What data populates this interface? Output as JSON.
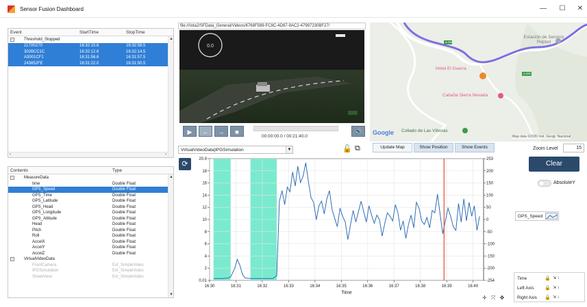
{
  "window": {
    "title": "Sensor Fusion Dashboard",
    "minimize": "—",
    "maximize": "☐",
    "close": "✕"
  },
  "events_table": {
    "columns": [
      "Event",
      "StartTime",
      "StopTime"
    ],
    "group": "Threshold_Stopped",
    "rows": [
      {
        "event": "1170S270",
        "start": "16:32:15.6",
        "stop": "16:32:58.5"
      },
      {
        "event": "302BCC1C",
        "start": "16:32:12.6",
        "stop": "16:32:14.5"
      },
      {
        "event": "A3001CF1",
        "start": "16:31:56.6",
        "stop": "16:31:57.5"
      },
      {
        "event": "243852FE",
        "start": "16:31:22.0",
        "stop": "16:31:50.5"
      }
    ]
  },
  "contents_table": {
    "columns": [
      "Contents",
      "Type"
    ],
    "groups": [
      {
        "name": "MeasureData",
        "items": [
          {
            "name": "time",
            "type": "Double Float"
          },
          {
            "name": "GPS_Speed",
            "type": "Double Float",
            "selected": true
          },
          {
            "name": "GPS_Time",
            "type": "Double Float"
          },
          {
            "name": "GPS_Latitude",
            "type": "Double Float"
          },
          {
            "name": "GPS_Head",
            "type": "Double Float"
          },
          {
            "name": "GPS_Longitude",
            "type": "Double Float"
          },
          {
            "name": "GPS_Altitude",
            "type": "Double Float"
          },
          {
            "name": "Head",
            "type": "Double Float"
          },
          {
            "name": "Pitch",
            "type": "Double Float"
          },
          {
            "name": "Roll",
            "type": "Double Float"
          },
          {
            "name": "AccelX",
            "type": "Double Float"
          },
          {
            "name": "AccelY",
            "type": "Double Float"
          },
          {
            "name": "AccelZ",
            "type": "Double Float"
          }
        ]
      },
      {
        "name": "VirtualVideoData",
        "items": [
          {
            "name": "FrontCamera",
            "type": "Ext_SimpleVideo"
          },
          {
            "name": "IPGSimulation",
            "type": "Ext_SimpleVideo"
          },
          {
            "name": "StreetView",
            "type": "Ext_SimpleVideo"
          }
        ]
      }
    ]
  },
  "video": {
    "path": "file:///iota2/SFData_General/Videos/6768F589-FC8C-4D67-9AC2-47997230BF27/",
    "time_display": "00:00:00.0 / 00:21:40.0",
    "progress": 0,
    "buttons": {
      "play": "▶",
      "back": "←",
      "forward": "→",
      "stop": "■",
      "volume": "🔊"
    },
    "dropdown_value": "VirtualVideoData|IPGSimulation"
  },
  "map": {
    "labels": {
      "station": "Estación de Servicio Repsol",
      "hotel": "Hotel El Guerra",
      "cabana": "Cabaña Sierra Nevada",
      "collado": "Collado de Las Víboras",
      "google": "Google",
      "attribution": "Map data ©2020 Inst. Geogr. Nacional",
      "road1": "A-395",
      "road2": "A-395"
    },
    "buttons": [
      "Update Map",
      "Show Position",
      "Show Events"
    ]
  },
  "controls": {
    "zoom_label": "Zoom Level",
    "zoom_value": "15",
    "clear_label": "Clear",
    "absolute_y_label": "AbsoluteY",
    "absolute_y_on": false,
    "series_label": "GPS_Speed"
  },
  "axis_panel": {
    "rows": [
      "Time",
      "Left Axis",
      "Right Axis"
    ]
  },
  "chart_data": {
    "type": "line",
    "xlabel": "Time",
    "ylabel": "",
    "x_ticks": [
      "16:30",
      "16:31",
      "16:32",
      "16:33",
      "16:34",
      "16:35",
      "16:36",
      "16:37",
      "16:38",
      "16:39",
      "16:40"
    ],
    "xlim": [
      0,
      10.4
    ],
    "left_ticks": [
      "0.01",
      "2",
      "4",
      "6",
      "8",
      "10",
      "12",
      "14",
      "16",
      "18",
      "20.9"
    ],
    "ylim": [
      0,
      20.9
    ],
    "right_ticks": [
      "-254",
      "-200",
      "-150",
      "-100",
      "-50",
      "0",
      "50",
      "100",
      "150",
      "200",
      "253"
    ],
    "right_ylim": [
      -254,
      253
    ],
    "highlight_ranges": [
      [
        0.15,
        0.8
      ],
      [
        1.55,
        2.55
      ]
    ],
    "marker_x": 8.9,
    "series": [
      {
        "values": [
          [
            0.15,
            0.3
          ],
          [
            0.45,
            0.3
          ],
          [
            0.7,
            0.4
          ],
          [
            0.8,
            0.6
          ],
          [
            0.95,
            2.0
          ],
          [
            1.05,
            3.6
          ],
          [
            1.15,
            2.6
          ],
          [
            1.25,
            1.0
          ],
          [
            1.35,
            0.4
          ],
          [
            1.6,
            0.3
          ],
          [
            2.0,
            0.3
          ],
          [
            2.4,
            0.3
          ],
          [
            2.55,
            0.8
          ],
          [
            2.65,
            13.6
          ],
          [
            2.75,
            15.4
          ],
          [
            2.85,
            13.0
          ],
          [
            2.95,
            16.0
          ],
          [
            3.05,
            15.2
          ],
          [
            3.15,
            18.6
          ],
          [
            3.25,
            16.2
          ],
          [
            3.35,
            19.6
          ],
          [
            3.45,
            16.8
          ],
          [
            3.55,
            17.9
          ],
          [
            3.65,
            20.2
          ],
          [
            3.75,
            17.0
          ],
          [
            3.85,
            14.2
          ],
          [
            3.95,
            13.4
          ],
          [
            4.05,
            10.4
          ],
          [
            4.15,
            12.8
          ],
          [
            4.25,
            13.6
          ],
          [
            4.35,
            11.4
          ],
          [
            4.45,
            14.0
          ],
          [
            4.55,
            15.4
          ],
          [
            4.65,
            12.2
          ],
          [
            4.75,
            10.6
          ],
          [
            4.85,
            9.2
          ],
          [
            4.95,
            12.4
          ],
          [
            5.05,
            11.0
          ],
          [
            5.15,
            10.0
          ],
          [
            5.25,
            7.0
          ],
          [
            5.35,
            9.6
          ],
          [
            5.45,
            12.0
          ],
          [
            5.55,
            10.0
          ],
          [
            5.65,
            11.8
          ],
          [
            5.75,
            13.6
          ],
          [
            5.85,
            11.8
          ],
          [
            5.95,
            10.0
          ],
          [
            6.05,
            12.8
          ],
          [
            6.15,
            11.2
          ],
          [
            6.25,
            9.8
          ],
          [
            6.35,
            11.2
          ],
          [
            6.45,
            10.4
          ],
          [
            6.55,
            7.6
          ],
          [
            6.65,
            9.8
          ],
          [
            6.75,
            11.6
          ],
          [
            6.85,
            11.0
          ],
          [
            6.95,
            10.2
          ],
          [
            7.05,
            13.0
          ],
          [
            7.15,
            11.6
          ],
          [
            7.25,
            8.6
          ],
          [
            7.35,
            10.2
          ],
          [
            7.45,
            7.2
          ],
          [
            7.55,
            9.6
          ],
          [
            7.65,
            11.2
          ],
          [
            7.75,
            9.0
          ],
          [
            7.85,
            13.4
          ],
          [
            7.95,
            12.4
          ],
          [
            8.05,
            10.2
          ],
          [
            8.15,
            9.6
          ],
          [
            8.25,
            10.8
          ],
          [
            8.35,
            9.0
          ],
          [
            8.45,
            12.0
          ],
          [
            8.55,
            11.6
          ],
          [
            8.65,
            14.8
          ],
          [
            8.75,
            11.4
          ],
          [
            8.85,
            8.0
          ],
          [
            8.95,
            10.2
          ],
          [
            9.05,
            12.4
          ],
          [
            9.15,
            11.0
          ],
          [
            9.25,
            9.2
          ],
          [
            9.35,
            8.6
          ],
          [
            9.45,
            13.2
          ],
          [
            9.55,
            10.0
          ],
          [
            9.65,
            14.0
          ],
          [
            9.75,
            10.2
          ],
          [
            9.85,
            13.4
          ],
          [
            9.95,
            11.0
          ],
          [
            10.05,
            12.8
          ],
          [
            10.15,
            8.6
          ],
          [
            10.25,
            11.0
          ]
        ]
      }
    ]
  }
}
